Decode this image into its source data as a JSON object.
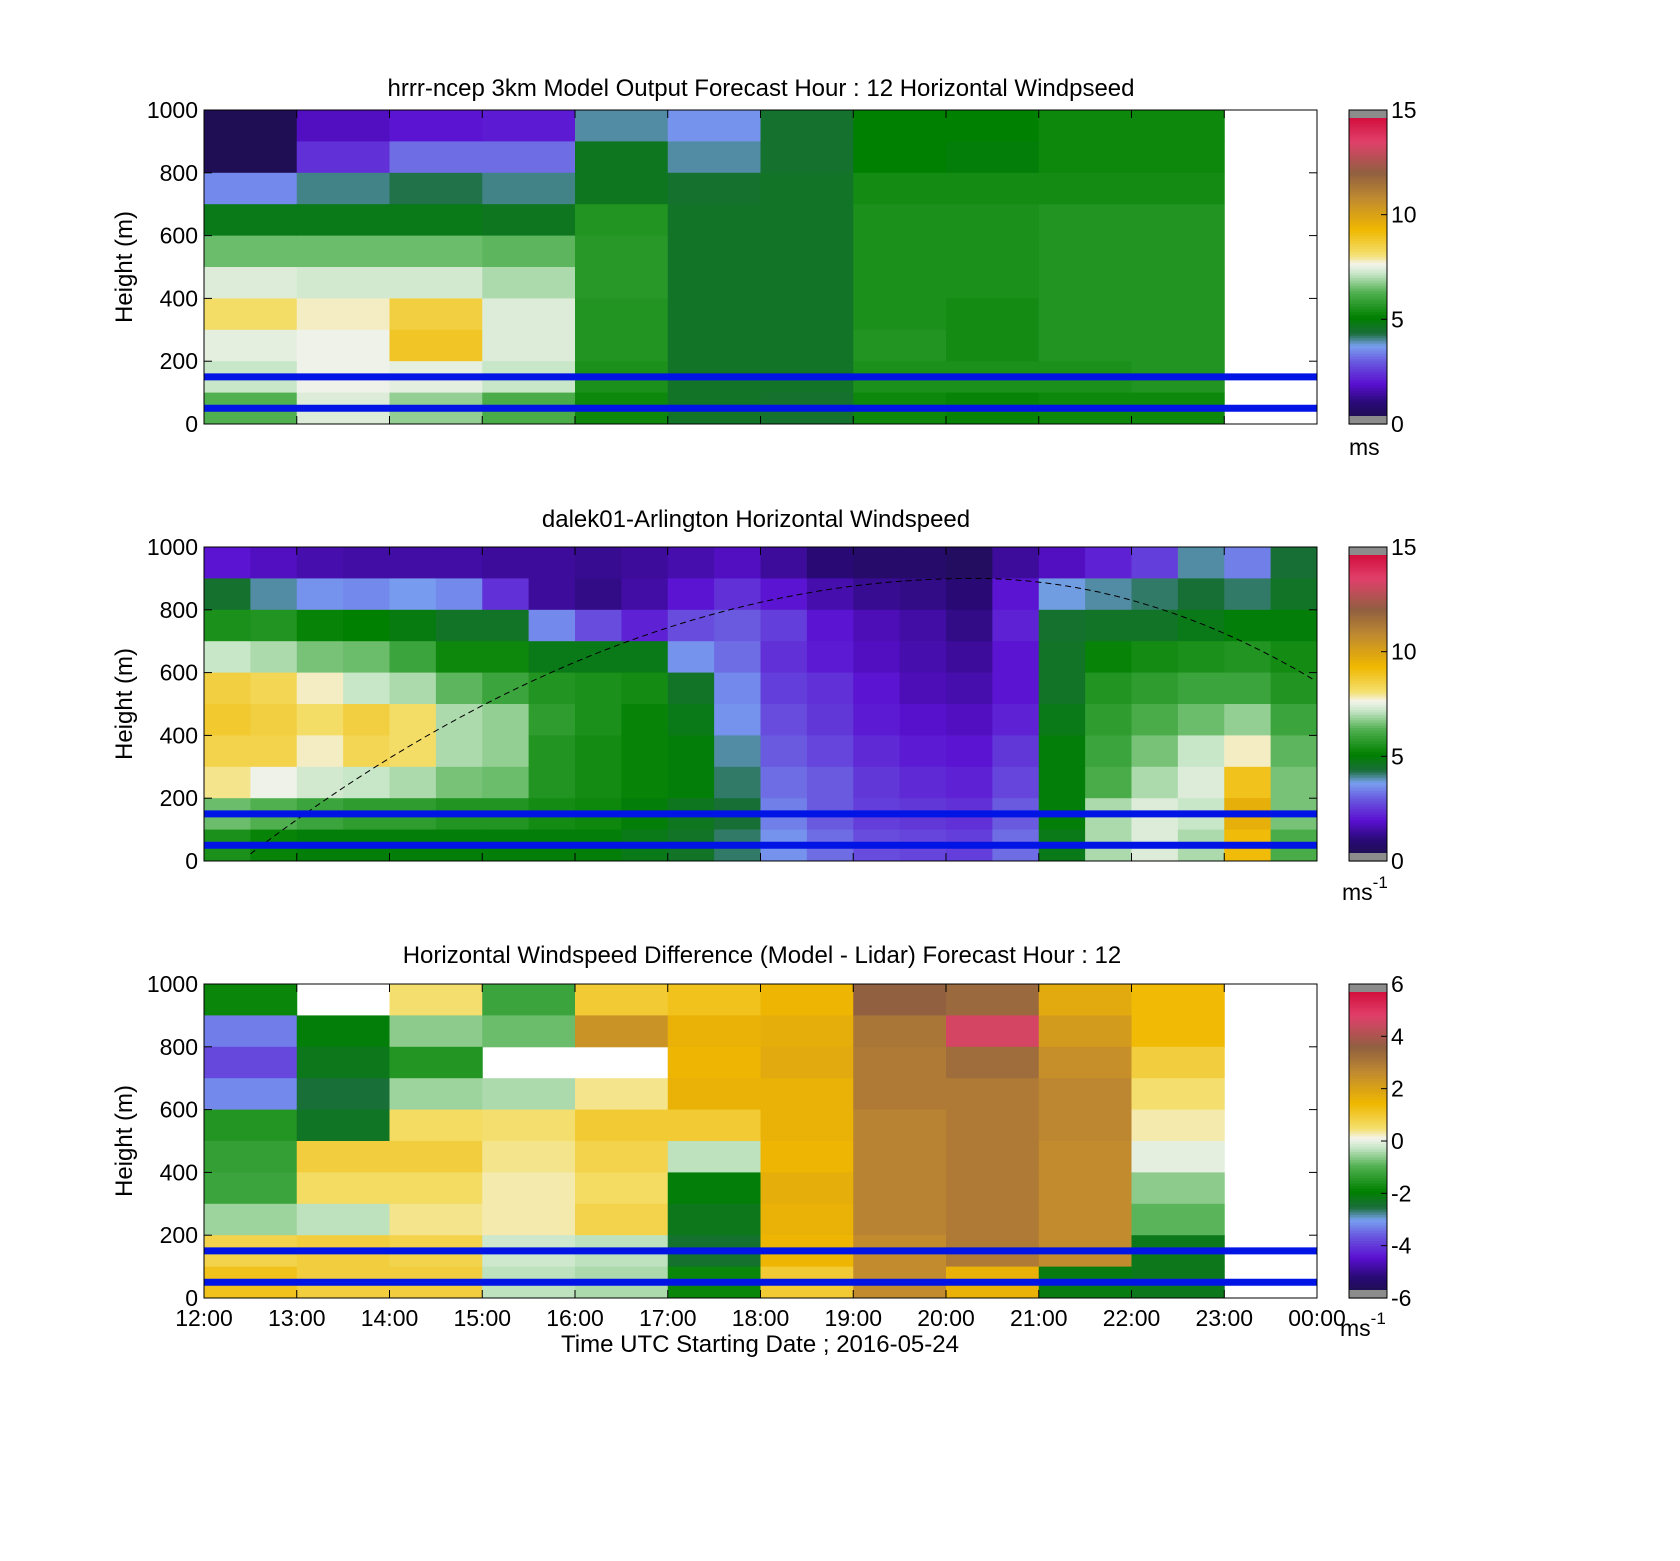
{
  "figure": {
    "xlabel": "Time UTC  Starting Date ; 2016-05-24",
    "x_ticks": [
      "12:00",
      "13:00",
      "14:00",
      "15:00",
      "16:00",
      "17:00",
      "18:00",
      "19:00",
      "20:00",
      "21:00",
      "22:00",
      "23:00",
      "00:00"
    ]
  },
  "chart_data": [
    {
      "type": "heatmap",
      "title": "hrrr-ncep 3km Model Output   Forecast Hour : 12 Horizontal Windpseed",
      "ylabel": "Height (m)",
      "x_range_hours_utc": [
        12,
        24
      ],
      "ylim": [
        0,
        1000
      ],
      "y_ticks": [
        "0",
        "200",
        "400",
        "600",
        "800",
        "1000"
      ],
      "height_levels_m": [
        950,
        850,
        750,
        650,
        550,
        450,
        350,
        250,
        150,
        50
      ],
      "hour_columns": [
        "12:00",
        "13:00",
        "14:00",
        "15:00",
        "16:00",
        "17:00",
        "18:00",
        "19:00",
        "20:00",
        "21:00",
        "22:00"
      ],
      "values_by_hour": [
        [
          0.4,
          0.4,
          3.5,
          4.8,
          6.5,
          7.4,
          8.2,
          7.5,
          7.2,
          6.3
        ],
        [
          1.8,
          2.4,
          4.1,
          4.8,
          6.5,
          7.3,
          7.8,
          7.6,
          7.6,
          7.4
        ],
        [
          2.0,
          3.2,
          4.3,
          4.8,
          6.5,
          7.3,
          8.6,
          8.9,
          7.5,
          6.8
        ],
        [
          2.1,
          3.2,
          4.1,
          4.7,
          6.4,
          7.0,
          7.4,
          7.4,
          7.2,
          6.2
        ],
        [
          4.0,
          4.7,
          4.7,
          5.6,
          5.7,
          5.7,
          5.6,
          5.6,
          5.5,
          5.3
        ],
        [
          3.6,
          4.0,
          4.5,
          4.6,
          4.6,
          4.6,
          4.6,
          4.6,
          4.6,
          4.6
        ],
        [
          4.5,
          4.5,
          4.6,
          4.6,
          4.6,
          4.6,
          4.6,
          4.6,
          4.6,
          4.5
        ],
        [
          5.1,
          5.1,
          5.4,
          5.5,
          5.5,
          5.5,
          5.5,
          5.6,
          5.5,
          5.3
        ],
        [
          5.1,
          5.0,
          5.4,
          5.5,
          5.5,
          5.5,
          5.4,
          5.4,
          5.5,
          5.2
        ],
        [
          5.3,
          5.3,
          5.4,
          5.6,
          5.6,
          5.6,
          5.6,
          5.6,
          5.5,
          5.3
        ],
        [
          5.3,
          5.3,
          5.4,
          5.6,
          5.6,
          5.6,
          5.6,
          5.6,
          5.6,
          5.3
        ]
      ],
      "reference_lines_m": [
        150,
        50
      ],
      "colorbar": {
        "range": [
          0,
          15
        ],
        "ticks": [
          "0",
          "5",
          "10",
          "15"
        ],
        "label": "ms"
      }
    },
    {
      "type": "heatmap",
      "title": "dalek01-Arlington  Horizontal Windspeed",
      "ylabel": "Height (m)",
      "x_range_hours_utc": [
        12,
        24
      ],
      "ylim": [
        0,
        1000
      ],
      "y_ticks": [
        "0",
        "200",
        "400",
        "600",
        "800",
        "1000"
      ],
      "height_levels_m": [
        950,
        850,
        750,
        650,
        550,
        450,
        350,
        250,
        150,
        50
      ],
      "time_hours_utc": [
        12.25,
        12.75,
        13.25,
        13.75,
        14.25,
        14.75,
        15.25,
        15.75,
        16.25,
        16.75,
        17.25,
        17.75,
        18.25,
        18.75,
        19.25,
        19.75,
        20.25,
        20.75,
        21.25,
        21.75,
        22.25,
        22.75,
        23.25,
        23.75
      ],
      "values_by_time": [
        [
          2.0,
          4.5,
          5.5,
          7.2,
          8.6,
          8.8,
          8.5,
          8.0,
          6.5,
          5.5
        ],
        [
          1.8,
          4.0,
          5.6,
          7.0,
          8.4,
          8.6,
          8.5,
          7.6,
          6.3,
          5.2
        ],
        [
          1.6,
          3.6,
          5.2,
          6.6,
          7.8,
          8.2,
          7.8,
          7.3,
          6.0,
          5.0
        ],
        [
          1.5,
          3.5,
          5.1,
          6.5,
          7.2,
          8.6,
          8.4,
          7.2,
          5.8,
          5.0
        ],
        [
          1.5,
          3.7,
          4.9,
          6.0,
          7.0,
          8.2,
          8.2,
          7.0,
          5.8,
          5.0
        ],
        [
          1.5,
          3.5,
          4.6,
          5.3,
          6.4,
          7.0,
          7.0,
          6.6,
          5.6,
          5.0
        ],
        [
          1.4,
          2.4,
          4.6,
          5.3,
          6.0,
          6.8,
          6.8,
          6.5,
          5.6,
          5.0
        ],
        [
          1.4,
          1.4,
          3.5,
          4.8,
          5.6,
          5.8,
          5.6,
          5.6,
          5.4,
          5.0
        ],
        [
          1.3,
          1.2,
          2.8,
          4.8,
          5.5,
          5.5,
          5.4,
          5.4,
          5.3,
          5.0
        ],
        [
          1.4,
          1.5,
          2.2,
          4.8,
          5.4,
          5.2,
          5.2,
          5.2,
          5.0,
          4.8
        ],
        [
          1.6,
          2.0,
          2.8,
          3.6,
          4.6,
          4.8,
          5.0,
          5.0,
          4.7,
          4.6
        ],
        [
          1.8,
          2.4,
          3.0,
          3.2,
          3.5,
          3.6,
          4.0,
          4.2,
          4.4,
          4.2
        ],
        [
          1.4,
          2.0,
          2.6,
          2.4,
          2.6,
          2.8,
          3.0,
          3.2,
          3.4,
          3.6
        ],
        [
          1.0,
          1.6,
          2.0,
          2.1,
          2.4,
          2.5,
          2.7,
          3.0,
          3.0,
          3.2
        ],
        [
          0.8,
          1.3,
          1.7,
          1.8,
          2.0,
          2.1,
          2.3,
          2.5,
          2.6,
          2.8
        ],
        [
          0.8,
          1.2,
          1.5,
          1.6,
          1.7,
          1.9,
          2.1,
          2.3,
          2.5,
          2.7
        ],
        [
          0.6,
          1.0,
          1.2,
          1.4,
          1.6,
          1.8,
          2.0,
          2.2,
          2.4,
          2.6
        ],
        [
          1.4,
          2.0,
          2.2,
          2.0,
          2.0,
          2.2,
          2.5,
          2.7,
          3.0,
          3.2
        ],
        [
          1.8,
          3.8,
          4.5,
          4.6,
          4.6,
          4.8,
          5.0,
          5.0,
          5.0,
          4.8
        ],
        [
          2.2,
          4.0,
          4.6,
          5.2,
          5.6,
          5.8,
          6.0,
          6.2,
          7.0,
          7.0
        ],
        [
          2.6,
          4.2,
          4.6,
          5.4,
          5.8,
          6.2,
          6.6,
          7.0,
          7.4,
          7.4
        ],
        [
          4.0,
          4.4,
          4.8,
          5.5,
          6.0,
          6.5,
          7.2,
          7.4,
          7.2,
          7.0
        ],
        [
          3.4,
          4.2,
          5.0,
          5.6,
          6.0,
          6.8,
          7.8,
          9.0,
          9.6,
          9.2
        ],
        [
          4.4,
          4.6,
          5.0,
          5.4,
          5.6,
          6.0,
          6.4,
          6.6,
          6.6,
          6.2
        ]
      ],
      "reference_lines_m": [
        150,
        50
      ],
      "colorbar": {
        "range": [
          0,
          15
        ],
        "ticks": [
          "0",
          "5",
          "10",
          "15"
        ],
        "label": "ms",
        "label_exp": "-1"
      }
    },
    {
      "type": "heatmap",
      "title": "Horizontal Windspeed Difference (Model - Lidar) Forecast Hour : 12",
      "ylabel": "Height (m)",
      "x_range_hours_utc": [
        12,
        24
      ],
      "ylim": [
        0,
        1000
      ],
      "y_ticks": [
        "0",
        "200",
        "400",
        "600",
        "800",
        "1000"
      ],
      "height_levels_m": [
        950,
        850,
        750,
        650,
        550,
        450,
        350,
        250,
        150,
        50
      ],
      "hour_columns": [
        "12:00",
        "13:00",
        "14:00",
        "15:00",
        "16:00",
        "17:00",
        "18:00",
        "19:00",
        "20:00",
        "21:00",
        "22:00"
      ],
      "values_by_hour": [
        [
          -1.8,
          -3.3,
          -3.8,
          -3.2,
          -1.5,
          -1.3,
          -1.2,
          -0.5,
          0.8,
          1.2
        ],
        [
          null,
          -2.0,
          -2.2,
          -2.5,
          -2.3,
          0.9,
          0.6,
          -0.3,
          0.9,
          0.9
        ],
        [
          0.5,
          -0.6,
          -1.5,
          -0.5,
          0.6,
          0.9,
          0.6,
          0.4,
          0.8,
          0.9
        ],
        [
          -1.2,
          -0.8,
          null,
          -0.4,
          0.5,
          0.4,
          0.3,
          0.3,
          -0.2,
          -0.3
        ],
        [
          1.0,
          2.4,
          null,
          0.4,
          1.0,
          0.8,
          0.6,
          0.8,
          -0.3,
          -0.4
        ],
        [
          1.2,
          1.6,
          1.5,
          1.6,
          1.0,
          -0.3,
          -2.0,
          -2.2,
          -2.4,
          -1.8
        ],
        [
          1.5,
          1.7,
          1.8,
          1.6,
          1.6,
          1.5,
          1.7,
          1.6,
          1.5,
          1.0
        ],
        [
          3.6,
          3.1,
          3.0,
          3.0,
          2.8,
          2.8,
          2.8,
          2.8,
          2.6,
          2.6
        ],
        [
          3.4,
          4.6,
          3.3,
          3.0,
          3.0,
          3.0,
          3.0,
          3.0,
          3.0,
          1.6
        ],
        [
          1.8,
          2.2,
          2.5,
          2.7,
          2.7,
          2.6,
          2.6,
          2.6,
          2.6,
          -2.1
        ],
        [
          1.4,
          1.4,
          0.9,
          0.5,
          0.3,
          0.0,
          -0.6,
          -0.9,
          -2.2,
          -2.2
        ]
      ],
      "reference_lines_m": [
        150,
        50
      ],
      "colorbar": {
        "range": [
          -6,
          6
        ],
        "ticks": [
          "-6",
          "-4",
          "-2",
          "0",
          "2",
          "4",
          "6"
        ],
        "label": "ms",
        "label_exp": "-1"
      }
    }
  ]
}
